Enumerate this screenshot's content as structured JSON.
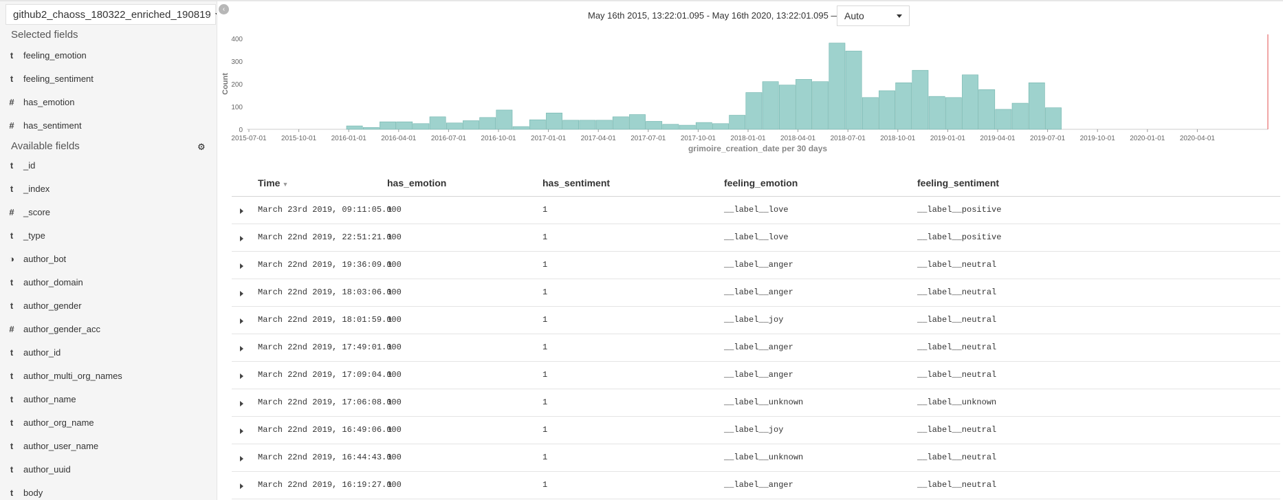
{
  "sidebar": {
    "index_pattern": "github2_chaoss_180322_enriched_190819",
    "selected_title": "Selected fields",
    "available_title": "Available fields",
    "selected_fields": [
      {
        "type": "t",
        "name": "feeling_emotion"
      },
      {
        "type": "t",
        "name": "feeling_sentiment"
      },
      {
        "type": "#",
        "name": "has_emotion"
      },
      {
        "type": "#",
        "name": "has_sentiment"
      }
    ],
    "available_fields": [
      {
        "type": "t",
        "name": "_id"
      },
      {
        "type": "t",
        "name": "_index"
      },
      {
        "type": "#",
        "name": "_score"
      },
      {
        "type": "t",
        "name": "_type"
      },
      {
        "type": "◑",
        "name": "author_bot"
      },
      {
        "type": "t",
        "name": "author_domain"
      },
      {
        "type": "t",
        "name": "author_gender"
      },
      {
        "type": "#",
        "name": "author_gender_acc"
      },
      {
        "type": "t",
        "name": "author_id"
      },
      {
        "type": "t",
        "name": "author_multi_org_names"
      },
      {
        "type": "t",
        "name": "author_name"
      },
      {
        "type": "t",
        "name": "author_org_name"
      },
      {
        "type": "t",
        "name": "author_user_name"
      },
      {
        "type": "t",
        "name": "author_uuid"
      },
      {
        "type": "t",
        "name": "body"
      }
    ]
  },
  "header": {
    "time_range": "May 16th 2015, 13:22:01.095 - May 16th 2020, 13:22:01.095 —",
    "interval": "Auto"
  },
  "chart_data": {
    "type": "bar",
    "xlabel": "grimoire_creation_date per 30 days",
    "ylabel": "Count",
    "ylim": [
      0,
      400
    ],
    "yticks": [
      0,
      100,
      200,
      300,
      400
    ],
    "x_ticks": [
      "2015-07-01",
      "2015-10-01",
      "2016-01-01",
      "2016-04-01",
      "2016-07-01",
      "2016-10-01",
      "2017-01-01",
      "2017-04-01",
      "2017-07-01",
      "2017-10-01",
      "2018-01-01",
      "2018-04-01",
      "2018-07-01",
      "2018-10-01",
      "2019-01-01",
      "2019-04-01",
      "2019-07-01",
      "2019-10-01",
      "2020-01-01",
      "2020-04-01"
    ],
    "values": [
      15,
      8,
      33,
      33,
      25,
      55,
      28,
      38,
      52,
      85,
      12,
      42,
      72,
      40,
      40,
      40,
      55,
      65,
      35,
      22,
      18,
      30,
      25,
      62,
      162,
      210,
      195,
      220,
      210,
      380,
      345,
      140,
      170,
      205,
      260,
      145,
      140,
      240,
      175,
      88,
      115,
      205,
      95
    ],
    "bar_color": "#9ed2cd",
    "marker_color": "#e34c4c",
    "grid": false
  },
  "table": {
    "columns": [
      "Time",
      "has_emotion",
      "has_sentiment",
      "feeling_emotion",
      "feeling_sentiment"
    ],
    "rows": [
      [
        "March 23rd 2019, 09:11:05.000",
        "1",
        "1",
        "__label__love",
        "__label__positive"
      ],
      [
        "March 22nd 2019, 22:51:21.000",
        "1",
        "1",
        "__label__love",
        "__label__positive"
      ],
      [
        "March 22nd 2019, 19:36:09.000",
        "1",
        "1",
        "__label__anger",
        "__label__neutral"
      ],
      [
        "March 22nd 2019, 18:03:06.000",
        "1",
        "1",
        "__label__anger",
        "__label__neutral"
      ],
      [
        "March 22nd 2019, 18:01:59.000",
        "1",
        "1",
        "__label__joy",
        "__label__neutral"
      ],
      [
        "March 22nd 2019, 17:49:01.000",
        "1",
        "1",
        "__label__anger",
        "__label__neutral"
      ],
      [
        "March 22nd 2019, 17:09:04.000",
        "1",
        "1",
        "__label__anger",
        "__label__neutral"
      ],
      [
        "March 22nd 2019, 17:06:08.000",
        "1",
        "1",
        "__label__unknown",
        "__label__unknown"
      ],
      [
        "March 22nd 2019, 16:49:06.000",
        "1",
        "1",
        "__label__joy",
        "__label__neutral"
      ],
      [
        "March 22nd 2019, 16:44:43.000",
        "1",
        "1",
        "__label__unknown",
        "__label__neutral"
      ],
      [
        "March 22nd 2019, 16:19:27.000",
        "1",
        "1",
        "__label__anger",
        "__label__neutral"
      ]
    ]
  }
}
